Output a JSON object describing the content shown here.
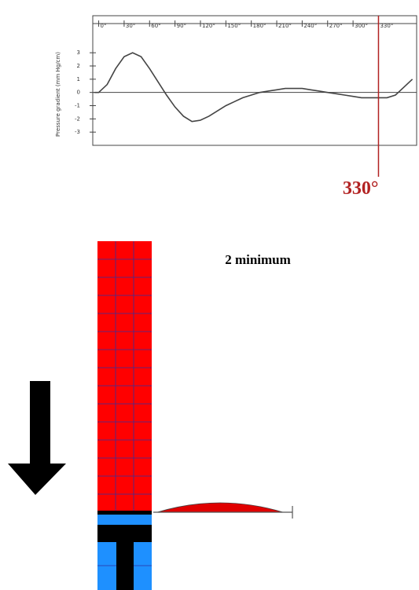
{
  "chart": {
    "y_axis_label": "Pressure gradient (mm Hg/cm)",
    "xlim": [
      -7,
      375
    ],
    "ylim": [
      -4,
      5.8
    ],
    "xticks": [
      {
        "value": 0,
        "label": "0°"
      },
      {
        "value": 30,
        "label": "30°"
      },
      {
        "value": 60,
        "label": "60°"
      },
      {
        "value": 90,
        "label": "90°"
      },
      {
        "value": 120,
        "label": "120°"
      },
      {
        "value": 150,
        "label": "150°"
      },
      {
        "value": 180,
        "label": "180°"
      },
      {
        "value": 210,
        "label": "210°"
      },
      {
        "value": 240,
        "label": "240°"
      },
      {
        "value": 270,
        "label": "270°"
      },
      {
        "value": 300,
        "label": "300°"
      },
      {
        "value": 330,
        "label": "330°"
      }
    ],
    "yticks": [
      -3,
      -2,
      -1,
      0,
      1,
      2,
      3
    ],
    "x": [
      -5,
      0,
      10,
      20,
      30,
      40,
      50,
      60,
      70,
      80,
      90,
      100,
      110,
      120,
      130,
      140,
      150,
      160,
      170,
      180,
      190,
      200,
      210,
      220,
      230,
      240,
      250,
      260,
      270,
      280,
      290,
      300,
      310,
      320,
      330,
      340,
      350,
      360,
      370
    ],
    "values": [
      0,
      0,
      0.6,
      1.8,
      2.7,
      3.0,
      2.7,
      1.8,
      0.8,
      -0.2,
      -1.1,
      -1.8,
      -2.2,
      -2.1,
      -1.8,
      -1.4,
      -1.0,
      -0.7,
      -0.4,
      -0.2,
      0,
      0.1,
      0.2,
      0.3,
      0.3,
      0.3,
      0.2,
      0.1,
      0,
      -0.1,
      -0.2,
      -0.3,
      -0.4,
      -0.4,
      -0.4,
      -0.4,
      -0.2,
      0.4,
      1.0
    ],
    "marker": {
      "value": 330,
      "label": "330°"
    }
  },
  "diagram": {
    "caption": "2 minimum"
  }
}
